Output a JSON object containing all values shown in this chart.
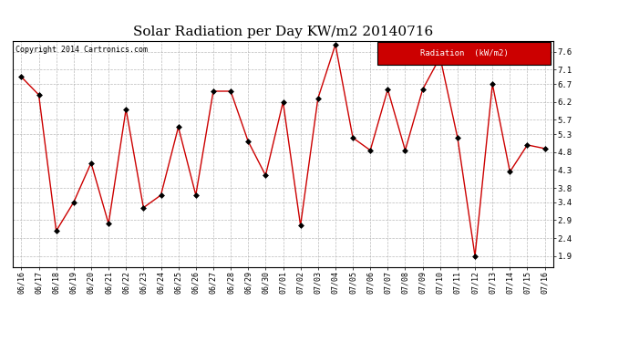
{
  "title": "Solar Radiation per Day KW/m2 20140716",
  "copyright": "Copyright 2014 Cartronics.com",
  "legend_label": "Radiation  (kW/m2)",
  "dates": [
    "06/16",
    "06/17",
    "06/18",
    "06/19",
    "06/20",
    "06/21",
    "06/22",
    "06/23",
    "06/24",
    "06/25",
    "06/26",
    "06/27",
    "06/28",
    "06/29",
    "06/30",
    "07/01",
    "07/02",
    "07/03",
    "07/04",
    "07/05",
    "07/06",
    "07/07",
    "07/08",
    "07/09",
    "07/10",
    "07/11",
    "07/12",
    "07/13",
    "07/14",
    "07/15",
    "07/16"
  ],
  "values": [
    6.9,
    6.4,
    2.6,
    3.4,
    4.5,
    2.8,
    6.0,
    3.25,
    3.6,
    5.5,
    3.6,
    6.5,
    6.5,
    5.1,
    4.15,
    6.2,
    2.75,
    6.3,
    7.8,
    5.2,
    4.85,
    6.55,
    4.85,
    6.55,
    7.45,
    5.2,
    1.9,
    6.7,
    4.25,
    5.0,
    4.9
  ],
  "line_color": "#cc0000",
  "marker": "D",
  "marker_color": "black",
  "marker_size": 3,
  "ylim": [
    1.6,
    7.9
  ],
  "yticks": [
    1.9,
    2.4,
    2.9,
    3.4,
    3.8,
    4.3,
    4.8,
    5.3,
    5.7,
    6.2,
    6.7,
    7.1,
    7.6
  ],
  "background_color": "#ffffff",
  "plot_bg_color": "#ffffff",
  "grid_color": "#aaaaaa",
  "title_fontsize": 11,
  "legend_bg": "#cc0000",
  "legend_text_color": "#ffffff"
}
